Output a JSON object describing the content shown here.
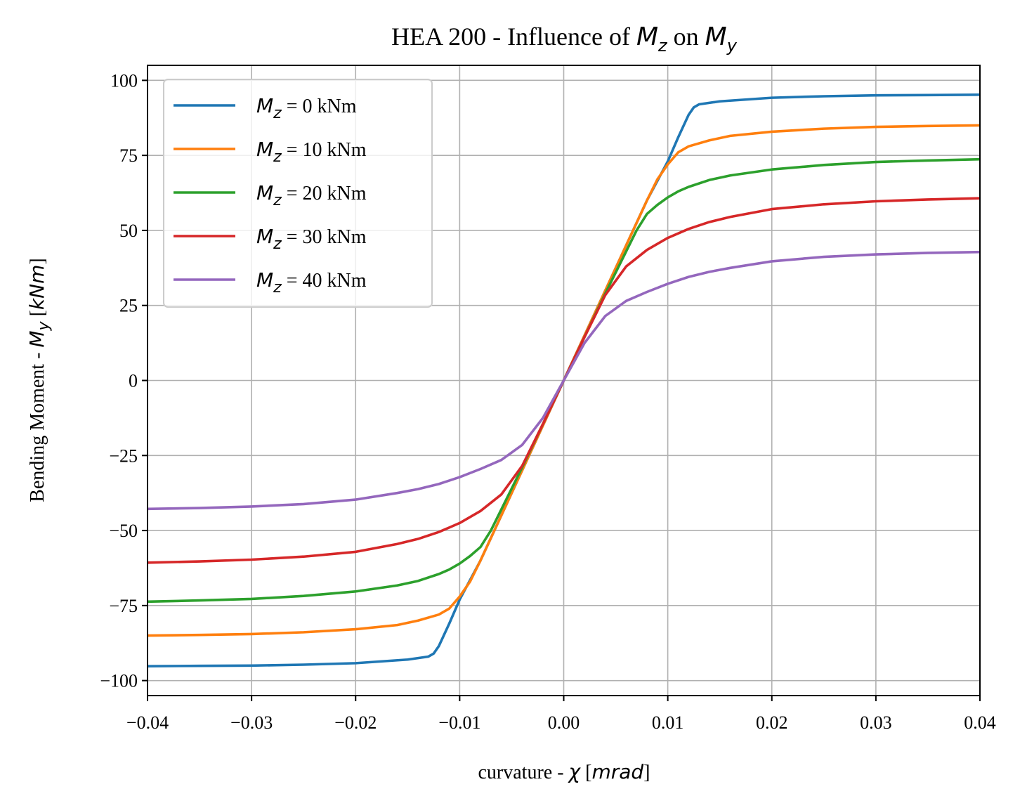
{
  "chart_data": {
    "type": "line",
    "title": {
      "prefix": "HEA 200 - Influence of ",
      "var1": "M",
      "sub1": "z",
      "middle": " on ",
      "var2": "M",
      "sub2": "y"
    },
    "xlabel": {
      "prefix": "curvature - ",
      "symbol": "χ",
      "open": " [",
      "unit": "mrad",
      "close": "]"
    },
    "ylabel": {
      "prefix": "Bending Moment - ",
      "var": "M",
      "sub": "y",
      "open": " [",
      "unit": "kNm",
      "close": "]"
    },
    "xlim": [
      -0.04,
      0.04
    ],
    "ylim": [
      -105,
      105
    ],
    "xticks": [
      -0.04,
      -0.03,
      -0.02,
      -0.01,
      0.0,
      0.01,
      0.02,
      0.03,
      0.04
    ],
    "xtick_labels": [
      "−0.04",
      "−0.03",
      "−0.02",
      "−0.01",
      "0.00",
      "0.01",
      "0.02",
      "0.03",
      "0.04"
    ],
    "yticks": [
      100,
      75,
      50,
      25,
      0,
      -25,
      -50,
      -75,
      -100
    ],
    "ytick_labels": [
      "100",
      "75",
      "50",
      "25",
      "0",
      "−25",
      "−50",
      "−75",
      "−100"
    ],
    "grid": true,
    "legend_position": "top-left",
    "series": [
      {
        "name": "M_z = 0 kNm",
        "legend_var": "M",
        "legend_sub": "z",
        "legend_text": " = 0 kNm",
        "color": "#1f77b4",
        "x": [
          0,
          0.004,
          0.008,
          0.01,
          0.011,
          0.012,
          0.0125,
          0.013,
          0.015,
          0.02,
          0.025,
          0.03,
          0.035,
          0.04
        ],
        "y": [
          0,
          30,
          60,
          73,
          81,
          88.5,
          91,
          92,
          93,
          94.2,
          94.7,
          95,
          95.1,
          95.2
        ]
      },
      {
        "name": "M_z = 10 kNm",
        "legend_var": "M",
        "legend_sub": "z",
        "legend_text": " = 10 kNm",
        "color": "#ff7f0e",
        "x": [
          0,
          0.004,
          0.008,
          0.009,
          0.01,
          0.011,
          0.012,
          0.014,
          0.016,
          0.02,
          0.025,
          0.03,
          0.035,
          0.04
        ],
        "y": [
          0,
          30,
          60,
          67,
          72,
          76,
          78,
          80,
          81.5,
          82.9,
          83.9,
          84.5,
          84.8,
          85
        ]
      },
      {
        "name": "M_z = 20 kNm",
        "legend_var": "M",
        "legend_sub": "z",
        "legend_text": " = 20 kNm",
        "color": "#2ca02c",
        "x": [
          0,
          0.002,
          0.004,
          0.006,
          0.007,
          0.008,
          0.009,
          0.01,
          0.011,
          0.012,
          0.014,
          0.016,
          0.02,
          0.025,
          0.03,
          0.035,
          0.04
        ],
        "y": [
          0,
          14.5,
          29,
          43,
          50,
          55.5,
          58.5,
          61,
          63,
          64.5,
          66.8,
          68.3,
          70.3,
          71.8,
          72.8,
          73.3,
          73.7
        ]
      },
      {
        "name": "M_z = 30 kNm",
        "legend_var": "M",
        "legend_sub": "z",
        "legend_text": " = 30 kNm",
        "color": "#d62728",
        "x": [
          0,
          0.002,
          0.004,
          0.006,
          0.008,
          0.01,
          0.012,
          0.014,
          0.016,
          0.02,
          0.025,
          0.03,
          0.035,
          0.04
        ],
        "y": [
          0,
          14.5,
          28.5,
          38,
          43.5,
          47.5,
          50.5,
          52.8,
          54.5,
          57.1,
          58.7,
          59.7,
          60.3,
          60.7
        ]
      },
      {
        "name": "M_z = 40 kNm",
        "legend_var": "M",
        "legend_sub": "z",
        "legend_text": " = 40 kNm",
        "color": "#9467bd",
        "x": [
          0,
          0.002,
          0.004,
          0.006,
          0.008,
          0.01,
          0.012,
          0.014,
          0.016,
          0.02,
          0.025,
          0.03,
          0.035,
          0.04
        ],
        "y": [
          0,
          12.5,
          21.5,
          26.5,
          29.5,
          32.2,
          34.5,
          36.2,
          37.5,
          39.7,
          41.2,
          42,
          42.5,
          42.8
        ]
      }
    ]
  }
}
